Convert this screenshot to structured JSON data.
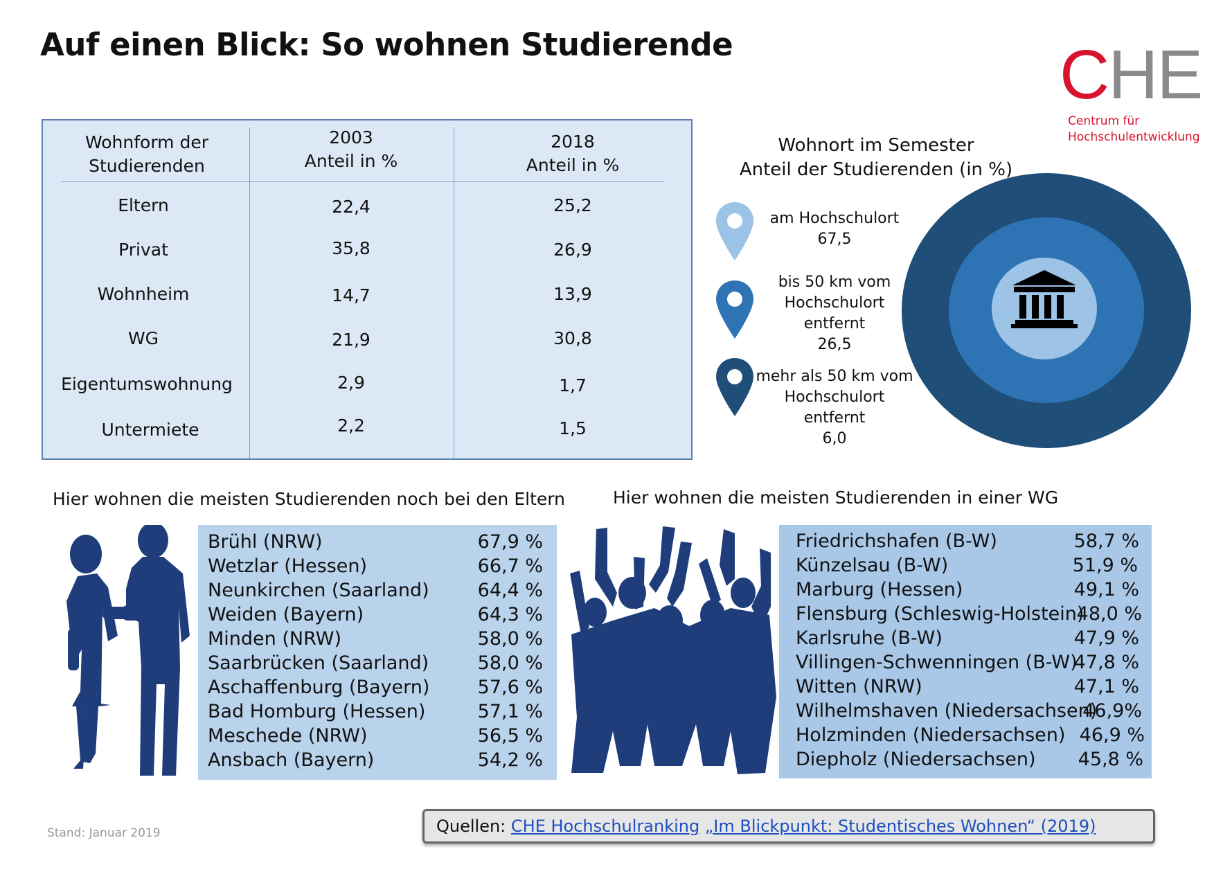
{
  "title": "Auf einen Blick: So wohnen Studierende",
  "logo": {
    "mark_c": "C",
    "mark_he": "HE",
    "line1": "Centrum für",
    "line2": "Hochschulentwicklung"
  },
  "table": {
    "header": {
      "col1_line1": "Wohnform der",
      "col1_line2": "Studierenden",
      "col2_line1": "2003",
      "col2_line2": "Anteil in %",
      "col3_line1": "2018",
      "col3_line2": "Anteil in %"
    },
    "rows": [
      {
        "label": "Eltern",
        "y2003": "22,4",
        "y2018": "25,2"
      },
      {
        "label": "Privat",
        "y2003": "35,8",
        "y2018": "26,9"
      },
      {
        "label": "Wohnheim",
        "y2003": "14,7",
        "y2018": "13,9"
      },
      {
        "label": "WG",
        "y2003": "21,9",
        "y2018": "30,8"
      },
      {
        "label": "Eigentumswohnung",
        "y2003": "2,9",
        "y2018": "1,7"
      },
      {
        "label": "Untermiete",
        "y2003": "2,2",
        "y2018": "1,5"
      }
    ]
  },
  "wohnort": {
    "title_line1": "Wohnort im Semester",
    "title_line2": "Anteil der Studierenden (in %)",
    "items": [
      {
        "line1": "am Hochschulort",
        "line2": "67,5",
        "color": "#9bc3e6"
      },
      {
        "line1": "bis 50 km vom",
        "line2": "Hochschulort",
        "line3": "entfernt",
        "line4": "26,5",
        "color": "#2e74b5"
      },
      {
        "line1": "mehr als 50 km vom",
        "line2": "Hochschulort",
        "line3": "entfernt",
        "line4": "6,0",
        "color": "#1f4e79"
      }
    ],
    "ring_colors": {
      "outer": "#1f4e79",
      "middle": "#2e74b5",
      "inner": "#9dc3e6"
    },
    "icon": "university-building-icon"
  },
  "eltern_section": {
    "heading": "Hier wohnen die meisten Studierenden noch bei den Eltern",
    "icon": "couple-silhouette-icon",
    "cities": [
      {
        "name": "Brühl (NRW)",
        "value": "67,9 %"
      },
      {
        "name": "Wetzlar (Hessen)",
        "value": "66,7 %"
      },
      {
        "name": "Neunkirchen (Saarland)",
        "value": "64,4 %"
      },
      {
        "name": "Weiden (Bayern)",
        "value": "64,3 %"
      },
      {
        "name": "Minden (NRW)",
        "value": "58,0 %"
      },
      {
        "name": "Saarbrücken (Saarland)",
        "value": "58,0 %"
      },
      {
        "name": "Aschaffenburg (Bayern)",
        "value": "57,6 %"
      },
      {
        "name": "Bad Homburg (Hessen)",
        "value": "57,1 %"
      },
      {
        "name": "Meschede (NRW)",
        "value": "56,5 %"
      },
      {
        "name": "Ansbach (Bayern)",
        "value": "54,2 %"
      }
    ]
  },
  "wg_section": {
    "heading": "Hier wohnen die meisten Studierenden in einer WG",
    "icon": "cheering-group-silhouette-icon",
    "cities": [
      {
        "name": "Friedrichshafen (B-W)",
        "value": "58,7 %"
      },
      {
        "name": "Künzelsau (B-W)",
        "value": "51,9 %"
      },
      {
        "name": "Marburg (Hessen)",
        "value": "49,1 %"
      },
      {
        "name": "Flensburg (Schleswig-Holstein)",
        "value": "48,0 %"
      },
      {
        "name": "Karlsruhe (B-W)",
        "value": "47,9 %"
      },
      {
        "name": "Villingen-Schwenningen (B-W)",
        "value": "47,8 %"
      },
      {
        "name": "Witten (NRW)",
        "value": "47,1 %"
      },
      {
        "name": "Wilhelmshaven (Niedersachsen)",
        "value": "46,9%"
      },
      {
        "name": "Holzminden (Niedersachsen)",
        "value": "46,9 %"
      },
      {
        "name": "Diepholz (Niedersachsen)",
        "value": "45,8 %"
      }
    ]
  },
  "stand": "Stand: Januar 2019",
  "sources": {
    "label": "Quellen:",
    "link1": "CHE Hochschulranking",
    "link2": "„Im Blickpunkt: Studentisches Wohnen“ (2019)"
  },
  "colors": {
    "accent_red": "#d7142d",
    "silhouette": "#1f3d7a",
    "table_bg": "#dce8f5",
    "list_bg_left": "#b9d3ec",
    "list_bg_right": "#a9c8e8"
  }
}
